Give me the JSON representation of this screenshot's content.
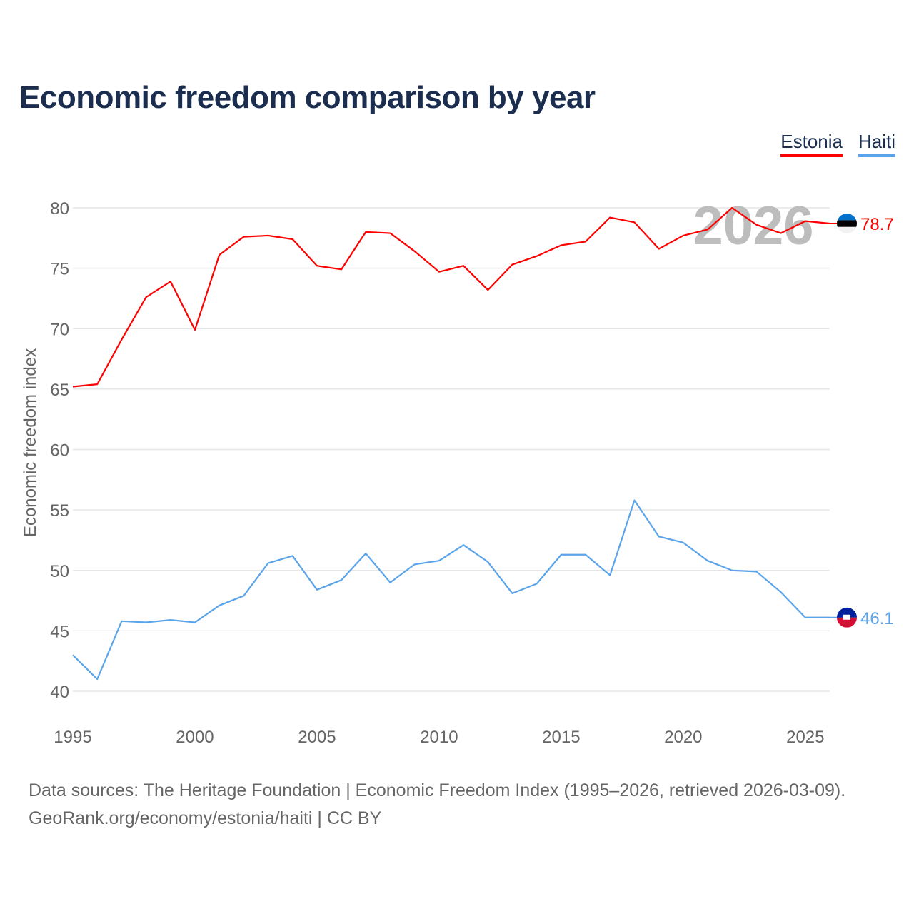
{
  "title": "Economic freedom comparison by year",
  "legend": [
    {
      "label": "Estonia",
      "color": "#ff0000"
    },
    {
      "label": "Haiti",
      "color": "#5ba4ea"
    }
  ],
  "source_line1": "Data sources: The Heritage Foundation | Economic Freedom Index (1995–2026, retrieved 2026-03-09).",
  "source_line2": "GeoRank.org/economy/estonia/haiti | CC BY",
  "chart_data": {
    "type": "line",
    "title": "Economic freedom comparison by year",
    "xlabel": "",
    "ylabel": "Economic freedom index",
    "xlim": [
      1995,
      2026
    ],
    "ylim": [
      40,
      80
    ],
    "yticks": [
      40,
      45,
      50,
      55,
      60,
      65,
      70,
      75,
      80
    ],
    "xticks": [
      1995,
      2000,
      2005,
      2010,
      2015,
      2020,
      2025
    ],
    "grid": true,
    "legend_position": "top-right",
    "watermark_year": "2026",
    "x": [
      1995,
      1996,
      1997,
      1998,
      1999,
      2000,
      2001,
      2002,
      2003,
      2004,
      2005,
      2006,
      2007,
      2008,
      2009,
      2010,
      2011,
      2012,
      2013,
      2014,
      2015,
      2016,
      2017,
      2018,
      2019,
      2020,
      2021,
      2022,
      2023,
      2024,
      2025,
      2026
    ],
    "series": [
      {
        "name": "Estonia",
        "color": "#ff0000",
        "end_label": "78.7",
        "values": [
          65.2,
          65.4,
          69.1,
          72.6,
          73.9,
          69.9,
          76.1,
          77.6,
          77.7,
          77.4,
          75.2,
          74.9,
          78.0,
          77.9,
          76.4,
          74.7,
          75.2,
          73.2,
          75.3,
          76.0,
          76.9,
          77.2,
          79.2,
          78.8,
          76.6,
          77.7,
          78.2,
          80.0,
          78.6,
          77.9,
          78.9,
          78.7
        ]
      },
      {
        "name": "Haiti",
        "color": "#5ba4ea",
        "end_label": "46.1",
        "values": [
          43.0,
          41.0,
          45.8,
          45.7,
          45.9,
          45.7,
          47.1,
          47.9,
          50.6,
          51.2,
          48.4,
          49.2,
          51.4,
          49.0,
          50.5,
          50.8,
          52.1,
          50.7,
          48.1,
          48.9,
          51.3,
          51.3,
          49.6,
          55.8,
          52.8,
          52.3,
          50.8,
          50.0,
          49.9,
          48.2,
          46.1,
          46.1
        ]
      }
    ]
  }
}
